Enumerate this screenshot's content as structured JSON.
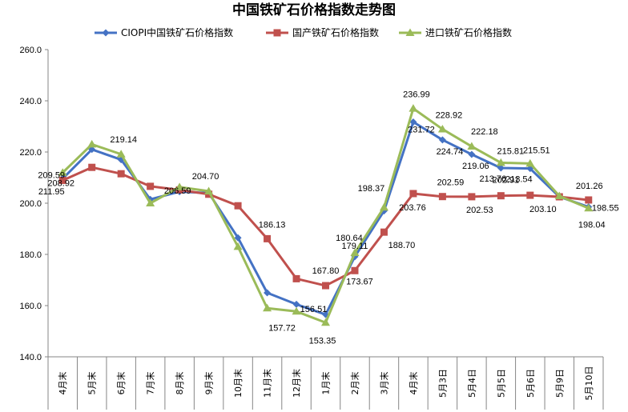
{
  "chart_data": {
    "type": "line",
    "title": "中国铁矿石价格指数走势图",
    "xlabel": "",
    "ylabel": "",
    "ylim": [
      140,
      260
    ],
    "yticks": [
      "140.0",
      "160.0",
      "180.0",
      "200.0",
      "220.0",
      "240.0",
      "260.0"
    ],
    "grid": false,
    "legend_position": "top",
    "categories": [
      "4月末",
      "5月末",
      "6月末",
      "7月末",
      "8月末",
      "9月末",
      "10月末",
      "11月末",
      "12月末",
      "1月末",
      "2月末",
      "3月末",
      "4月末",
      "5月3日",
      "5月4日",
      "5月5日",
      "5月6日",
      "5月9日",
      "5月10日"
    ],
    "series": [
      {
        "name": "CIOPI中国铁矿石价格指数",
        "color": "#4472C4",
        "marker": "diamond",
        "values": [
          209.59,
          221.0,
          217.0,
          201.5,
          204.5,
          204.0,
          186.5,
          165.0,
          160.5,
          156.51,
          179.11,
          197.0,
          231.72,
          224.74,
          219.06,
          213.76,
          213.54,
          202.5,
          198.55
        ]
      },
      {
        "name": "国产铁矿石价格指数",
        "color": "#C0504D",
        "marker": "square",
        "values": [
          208.92,
          214.0,
          211.5,
          206.59,
          205.2,
          203.5,
          199.0,
          186.13,
          170.5,
          167.8,
          173.67,
          188.7,
          203.76,
          202.59,
          202.53,
          202.91,
          203.1,
          202.5,
          201.26
        ]
      },
      {
        "name": "进口铁矿石价格指数",
        "color": "#9BBB59",
        "marker": "triangle",
        "values": [
          211.95,
          223.0,
          219.14,
          200.0,
          206.3,
          204.7,
          183.0,
          159.0,
          157.72,
          153.35,
          180.64,
          198.37,
          236.99,
          228.92,
          222.18,
          215.81,
          215.51,
          202.8,
          198.04
        ]
      }
    ],
    "data_labels": [
      {
        "series": 0,
        "index": 0,
        "text": "209.59"
      },
      {
        "series": 1,
        "index": 0,
        "text": "208.92"
      },
      {
        "series": 2,
        "index": 0,
        "text": "211.95"
      },
      {
        "series": 2,
        "index": 2,
        "text": "219.14"
      },
      {
        "series": 1,
        "index": 3,
        "text": "206.59"
      },
      {
        "series": 2,
        "index": 5,
        "text": "204.70"
      },
      {
        "series": 1,
        "index": 7,
        "text": "186.13"
      },
      {
        "series": 2,
        "index": 8,
        "text": "157.72"
      },
      {
        "series": 0,
        "index": 9,
        "text": "156.51"
      },
      {
        "series": 1,
        "index": 9,
        "text": "167.80"
      },
      {
        "series": 2,
        "index": 9,
        "text": "153.35"
      },
      {
        "series": 2,
        "index": 10,
        "text": "180.64"
      },
      {
        "series": 0,
        "index": 10,
        "text": "179.11"
      },
      {
        "series": 1,
        "index": 10,
        "text": "173.67"
      },
      {
        "series": 2,
        "index": 11,
        "text": "198.37"
      },
      {
        "series": 1,
        "index": 11,
        "text": "188.70"
      },
      {
        "series": 2,
        "index": 12,
        "text": "236.99"
      },
      {
        "series": 0,
        "index": 12,
        "text": "231.72"
      },
      {
        "series": 1,
        "index": 12,
        "text": "203.76"
      },
      {
        "series": 2,
        "index": 13,
        "text": "228.92"
      },
      {
        "series": 0,
        "index": 13,
        "text": "224.74"
      },
      {
        "series": 1,
        "index": 13,
        "text": "202.59"
      },
      {
        "series": 2,
        "index": 14,
        "text": "222.18"
      },
      {
        "series": 0,
        "index": 14,
        "text": "219.06"
      },
      {
        "series": 1,
        "index": 14,
        "text": "202.53"
      },
      {
        "series": 2,
        "index": 15,
        "text": "215.81"
      },
      {
        "series": 0,
        "index": 15,
        "text": "213.76"
      },
      {
        "series": 1,
        "index": 15,
        "text": "202.91"
      },
      {
        "series": 2,
        "index": 16,
        "text": "215.51"
      },
      {
        "series": 0,
        "index": 16,
        "text": "213.54"
      },
      {
        "series": 1,
        "index": 16,
        "text": "203.10"
      },
      {
        "series": 1,
        "index": 18,
        "text": "201.26"
      },
      {
        "series": 0,
        "index": 18,
        "text": "198.55"
      },
      {
        "series": 2,
        "index": 18,
        "text": "198.04"
      }
    ]
  }
}
